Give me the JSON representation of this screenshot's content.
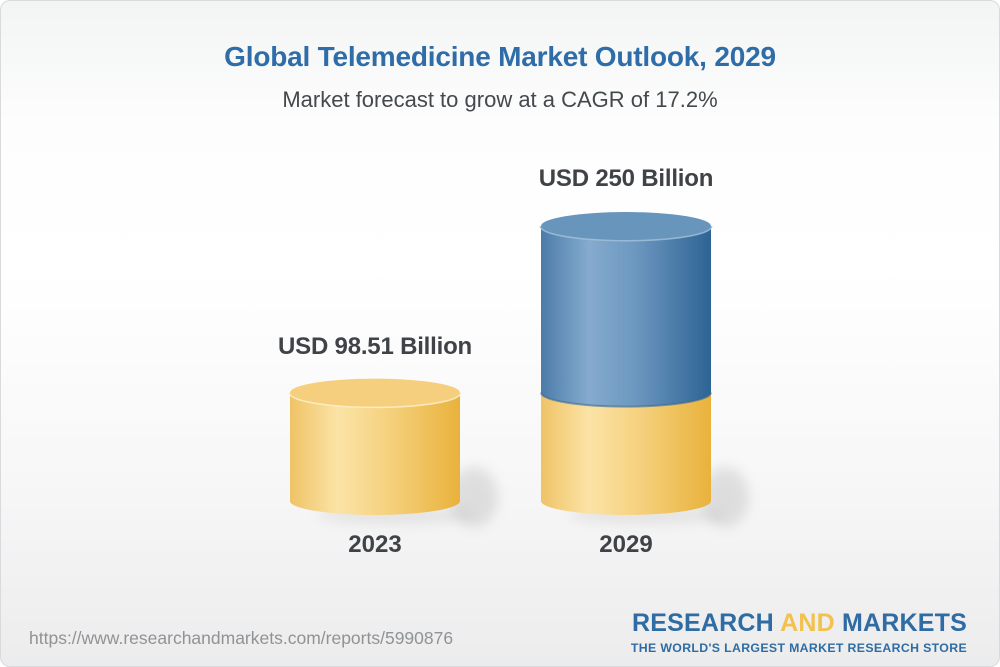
{
  "chart_data": {
    "type": "bar",
    "title": "Global Telemedicine Market Outlook, 2029",
    "subtitle": "Market forecast to grow at a CAGR of 17.2%",
    "unit": "USD Billion",
    "cagr_percent": 17.2,
    "categories": [
      "2023",
      "2029"
    ],
    "values": [
      98.51,
      250
    ],
    "bars": [
      {
        "category": "2023",
        "value": 98.51,
        "label": "USD 98.51 Billion",
        "segments": [
          {
            "name": "base-2023-market",
            "value": 98.51,
            "color": "yellow"
          }
        ]
      },
      {
        "category": "2029",
        "value": 250,
        "label": "USD 250 Billion",
        "segments": [
          {
            "name": "base-2023-market",
            "value": 98.51,
            "color": "yellow"
          },
          {
            "name": "forecast-growth",
            "value": 151.49,
            "color": "blue"
          }
        ]
      }
    ],
    "palette": {
      "yellow": {
        "edge": "#EFC366",
        "light": "#FBE3A6",
        "mid": "#F6D383",
        "dark": "#E9B23C",
        "top": "#F5CF7E",
        "rim": "#FDEDC6"
      },
      "blue": {
        "edge": "#4C7BA8",
        "light": "#85ABCE",
        "mid": "#6D98C0",
        "dark": "#2D6495",
        "top": "#6795BB",
        "rim": "#9DBDD8"
      }
    },
    "legend": null,
    "grid": false,
    "axis_labels_visible": false
  },
  "header": {
    "title_color": "#2E6DA8",
    "subtitle_color": "#45494D"
  },
  "footer": {
    "url": "https://www.researchandmarkets.com/reports/5990876",
    "logo": {
      "word1": "RESEARCH",
      "word2": "AND",
      "word3": "MARKETS",
      "tagline": "THE WORLD'S LARGEST MARKET RESEARCH STORE",
      "blue": "#2E6CA3",
      "gold": "#F2C14E"
    }
  }
}
